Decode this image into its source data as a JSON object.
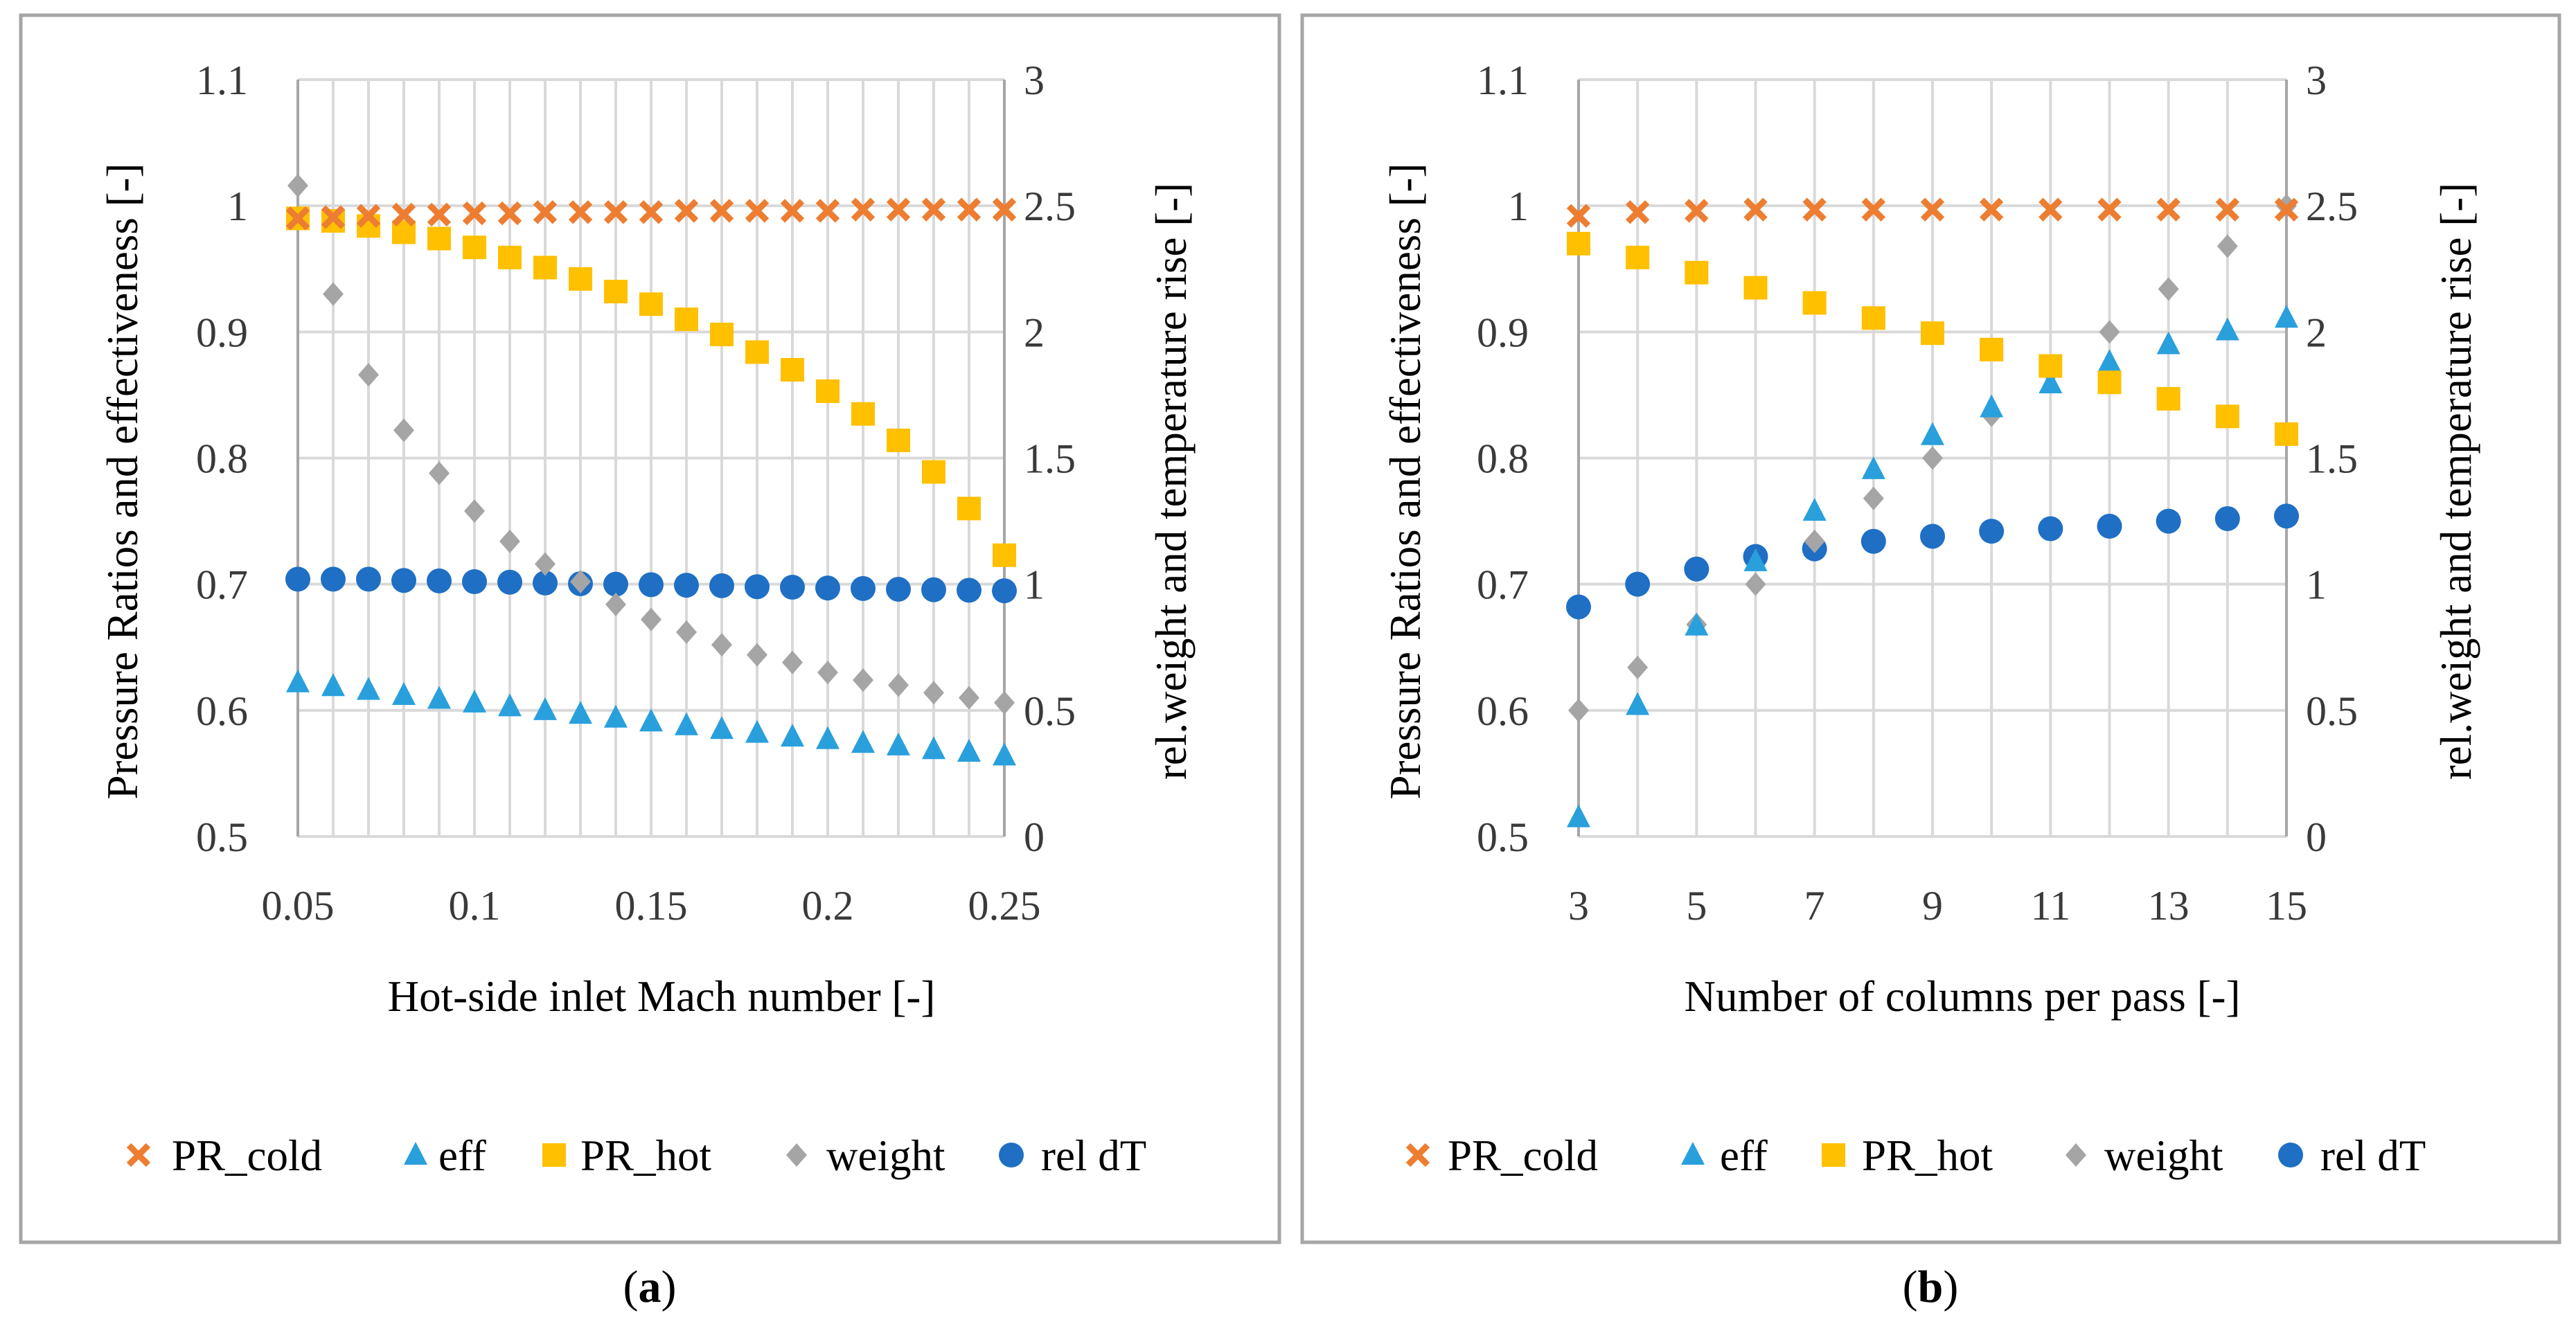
{
  "colors": {
    "PR_cold": "#ED7D31",
    "eff": "#29A0DC",
    "PR_hot": "#FFC000",
    "weight": "#A5A5A5",
    "rel dT": "#1F6FC4"
  },
  "chart_data": [
    {
      "type": "scatter",
      "panel_label": "a",
      "xlabel": "Hot-side inlet Mach number [-]",
      "ylabel": "Pressure Ratios and effectiveness [-]",
      "y2label": "rel.weight and temperature rise [-]",
      "xlim": [
        0.05,
        0.25
      ],
      "ylim": [
        0.5,
        1.1
      ],
      "y2lim": [
        0,
        3
      ],
      "x_ticks": [
        "0.05",
        "0.1",
        "0.15",
        "0.2",
        "0.25"
      ],
      "y_ticks": [
        "0.5",
        "0.6",
        "0.7",
        "0.8",
        "0.9",
        "1",
        "1.1"
      ],
      "y2_ticks": [
        "0",
        "0.5",
        "1",
        "1.5",
        "2",
        "2.5",
        "3"
      ],
      "legend": [
        "PR_cold",
        "eff",
        "PR_hot",
        "weight",
        "rel dT"
      ],
      "x": [
        0.05,
        0.06,
        0.07,
        0.08,
        0.09,
        0.1,
        0.11,
        0.12,
        0.13,
        0.14,
        0.15,
        0.16,
        0.17,
        0.18,
        0.19,
        0.2,
        0.21,
        0.22,
        0.23,
        0.24,
        0.25
      ],
      "series": [
        {
          "name": "PR_cold",
          "axis": "left",
          "marker": "x",
          "values": [
            0.99,
            0.991,
            0.992,
            0.993,
            0.993,
            0.994,
            0.994,
            0.995,
            0.995,
            0.995,
            0.995,
            0.996,
            0.996,
            0.996,
            0.996,
            0.996,
            0.997,
            0.997,
            0.997,
            0.997,
            0.997
          ]
        },
        {
          "name": "eff",
          "axis": "left",
          "marker": "triangle",
          "values": [
            0.622,
            0.619,
            0.616,
            0.612,
            0.609,
            0.606,
            0.603,
            0.6,
            0.597,
            0.594,
            0.591,
            0.588,
            0.585,
            0.582,
            0.579,
            0.577,
            0.574,
            0.572,
            0.569,
            0.567,
            0.564
          ]
        },
        {
          "name": "PR_hot",
          "axis": "left",
          "marker": "square",
          "values": [
            0.99,
            0.988,
            0.984,
            0.979,
            0.974,
            0.967,
            0.959,
            0.951,
            0.942,
            0.932,
            0.922,
            0.91,
            0.898,
            0.884,
            0.87,
            0.853,
            0.835,
            0.814,
            0.789,
            0.76,
            0.723
          ]
        },
        {
          "name": "weight",
          "axis": "right",
          "marker": "diamond",
          "values": [
            2.58,
            2.15,
            1.83,
            1.61,
            1.44,
            1.29,
            1.17,
            1.08,
            1.01,
            0.92,
            0.86,
            0.81,
            0.76,
            0.72,
            0.69,
            0.65,
            0.62,
            0.6,
            0.57,
            0.55,
            0.53
          ]
        },
        {
          "name": "rel dT",
          "axis": "right",
          "marker": "circle",
          "values": [
            1.02,
            1.02,
            1.02,
            1.015,
            1.013,
            1.01,
            1.008,
            1.005,
            1.002,
            1.0,
            0.998,
            0.996,
            0.994,
            0.99,
            0.988,
            0.985,
            0.983,
            0.98,
            0.978,
            0.976,
            0.974
          ]
        }
      ]
    },
    {
      "type": "scatter",
      "panel_label": "b",
      "xlabel": "Number of columns per pass [-]",
      "ylabel": "Pressure Ratios and effectiveness [-]",
      "y2label": "rel.weight and temperature rise [-]",
      "xlim": [
        3,
        15
      ],
      "ylim": [
        0.5,
        1.1
      ],
      "y2lim": [
        0,
        3
      ],
      "x_ticks": [
        "3",
        "5",
        "7",
        "9",
        "11",
        "13",
        "15"
      ],
      "y_ticks": [
        "0.5",
        "0.6",
        "0.7",
        "0.8",
        "0.9",
        "1",
        "1.1"
      ],
      "y2_ticks": [
        "0",
        "0.5",
        "1",
        "1.5",
        "2",
        "2.5",
        "3"
      ],
      "legend": [
        "PR_cold",
        "eff",
        "PR_hot",
        "weight",
        "rel dT"
      ],
      "x": [
        3,
        4,
        5,
        6,
        7,
        8,
        9,
        10,
        11,
        12,
        13,
        14,
        15
      ],
      "series": [
        {
          "name": "PR_cold",
          "axis": "left",
          "marker": "x",
          "values": [
            0.992,
            0.995,
            0.996,
            0.997,
            0.997,
            0.997,
            0.997,
            0.997,
            0.997,
            0.997,
            0.997,
            0.997,
            0.997
          ]
        },
        {
          "name": "eff",
          "axis": "left",
          "marker": "triangle",
          "values": [
            0.515,
            0.604,
            0.667,
            0.718,
            0.758,
            0.791,
            0.818,
            0.84,
            0.859,
            0.876,
            0.89,
            0.901,
            0.911
          ]
        },
        {
          "name": "PR_hot",
          "axis": "left",
          "marker": "square",
          "values": [
            0.97,
            0.959,
            0.947,
            0.935,
            0.923,
            0.911,
            0.899,
            0.886,
            0.873,
            0.86,
            0.847,
            0.833,
            0.819
          ]
        },
        {
          "name": "weight",
          "axis": "right",
          "marker": "diamond",
          "values": [
            0.5,
            0.67,
            0.84,
            1.0,
            1.17,
            1.34,
            1.5,
            1.67,
            1.84,
            2.0,
            2.17,
            2.34,
            2.5
          ]
        },
        {
          "name": "rel dT",
          "axis": "right",
          "marker": "circle",
          "values": [
            0.91,
            1.0,
            1.06,
            1.11,
            1.14,
            1.17,
            1.19,
            1.21,
            1.22,
            1.23,
            1.25,
            1.26,
            1.27
          ]
        }
      ]
    }
  ]
}
